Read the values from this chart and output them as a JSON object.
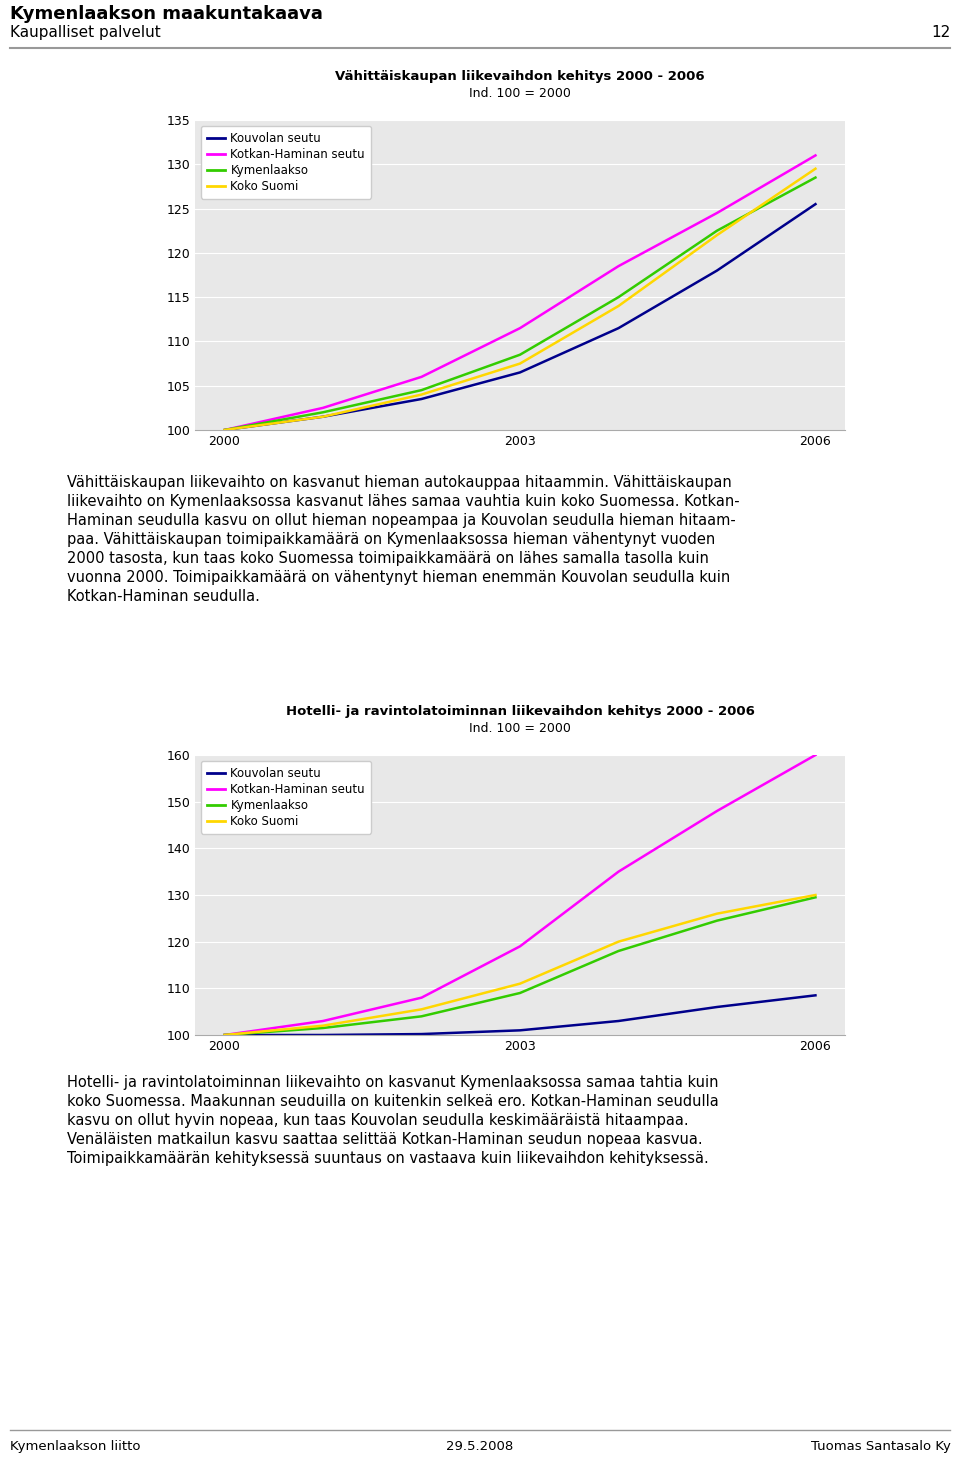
{
  "header_title": "Kymenlaakson maakuntakaava",
  "header_subtitle": "Kaupalliset palvelut",
  "header_page": "12",
  "chart1": {
    "title": "Vähittäiskaupan liikevaihdon kehitys 2000 - 2006",
    "subtitle": "Ind. 100 = 2000",
    "years": [
      2000,
      2001,
      2002,
      2003,
      2004,
      2005,
      2006
    ],
    "ylim": [
      100,
      135
    ],
    "yticks": [
      100,
      105,
      110,
      115,
      120,
      125,
      130,
      135
    ],
    "xticks": [
      2000,
      2003,
      2006
    ],
    "series": {
      "Kouvolan seutu": [
        100,
        101.5,
        103.5,
        106.5,
        111.5,
        118.0,
        125.5
      ],
      "Kotkan-Haminan seutu": [
        100,
        102.5,
        106.0,
        111.5,
        118.5,
        124.5,
        131.0
      ],
      "Kymenlaakso": [
        100,
        102.0,
        104.5,
        108.5,
        115.0,
        122.5,
        128.5
      ],
      "Koko Suomi": [
        100,
        101.5,
        104.0,
        107.5,
        114.0,
        122.0,
        129.5
      ]
    },
    "colors": {
      "Kouvolan seutu": "#00008B",
      "Kotkan-Haminan seutu": "#FF00FF",
      "Kymenlaakso": "#33CC00",
      "Koko Suomi": "#FFD700"
    },
    "legend_order": [
      "Kouvolan seutu",
      "Kotkan-Haminan seutu",
      "Kymenlaakso",
      "Koko Suomi"
    ]
  },
  "chart2": {
    "title": "Hotelli- ja ravintolatoiminnan liikevaihdon kehitys 2000 - 2006",
    "subtitle": "Ind. 100 = 2000",
    "years": [
      2000,
      2001,
      2002,
      2003,
      2004,
      2005,
      2006
    ],
    "ylim": [
      100,
      160
    ],
    "yticks": [
      100,
      110,
      120,
      130,
      140,
      150,
      160
    ],
    "xticks": [
      2000,
      2003,
      2006
    ],
    "series": {
      "Kouvolan seutu": [
        100,
        100.0,
        100.2,
        101.0,
        103.0,
        106.0,
        108.5
      ],
      "Kotkan-Haminan seutu": [
        100,
        103.0,
        108.0,
        119.0,
        135.0,
        148.0,
        160.0
      ],
      "Kymenlaakso": [
        100,
        101.5,
        104.0,
        109.0,
        118.0,
        124.5,
        129.5
      ],
      "Koko Suomi": [
        100,
        102.0,
        105.5,
        111.0,
        120.0,
        126.0,
        130.0
      ]
    },
    "colors": {
      "Kouvolan seutu": "#00008B",
      "Kotkan-Haminan seutu": "#FF00FF",
      "Kymenlaakso": "#33CC00",
      "Koko Suomi": "#FFD700"
    },
    "legend_order": [
      "Kouvolan seutu",
      "Kotkan-Haminan seutu",
      "Kymenlaakso",
      "Koko Suomi"
    ]
  },
  "para1_lines": [
    "Vähittäiskaupan liikevaihto on kasvanut hieman autokauppaa hitaammin. Vähittäiskaupan",
    "liikevaihto on Kymenlaaksossa kasvanut lähes samaa vauhtia kuin koko Suomessa. Kotkan-",
    "Haminan seudulla kasvu on ollut hieman nopeampaa ja Kouvolan seudulla hieman hitaam-",
    "paa. Vähittäiskaupan toimipaikkamäärä on Kymenlaaksossa hieman vähentynyt vuoden",
    "2000 tasosta, kun taas koko Suomessa toimipaikkamäärä on lähes samalla tasolla kuin",
    "vuonna 2000. Toimipaikkamäärä on vähentynyt hieman enemmän Kouvolan seudulla kuin",
    "Kotkan-Haminan seudulla."
  ],
  "para2_lines": [
    "Hotelli- ja ravintolatoiminnan liikevaihto on kasvanut Kymenlaaksossa samaa tahtia kuin",
    "koko Suomessa. Maakunnan seuduilla on kuitenkin selkeä ero. Kotkan-Haminan seudulla",
    "kasvu on ollut hyvin nopeaa, kun taas Kouvolan seudulla keskimääräistä hitaampaa.",
    "Venäläisten matkailun kasvu saattaa selittää Kotkan-Haminan seudun nopeaa kasvua.",
    "Toimipaikkamäärän kehityksessä suuntaus on vastaava kuin liikevaihdon kehityksessä."
  ],
  "footer_left": "Kymenlaakson liitto",
  "footer_center": "29.5.2008",
  "footer_right": "Tuomas Santasalo Ky",
  "chart_bg": "#E8E8E8",
  "line_width": 1.8,
  "header_line_color": "#999999",
  "footer_line_color": "#999999"
}
